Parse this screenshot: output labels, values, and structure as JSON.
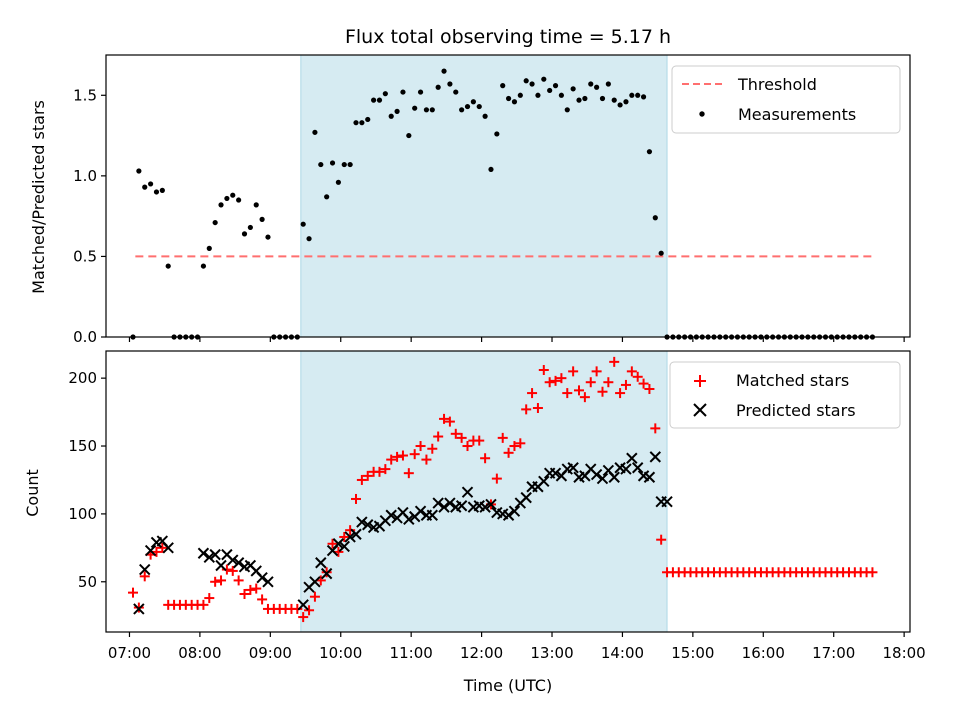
{
  "colors": {
    "shade": "#add8e6",
    "threshold": "#ff6f6f",
    "measurement": "#000000",
    "matched": "#ff0000",
    "predicted": "#000000"
  },
  "chart_data": [
    {
      "type": "scatter",
      "title": "Flux total observing time = 5.17 h",
      "ylabel": "Matched/Predicted stars",
      "ylim": [
        0,
        1.75
      ],
      "yticks": [
        "0.0",
        "0.5",
        "1.0",
        "1.5"
      ],
      "xlim": [
        "06:40",
        "18:05"
      ],
      "shaded_span": [
        "09:26",
        "14:38"
      ],
      "legend_position": "upper right",
      "threshold": {
        "name": "Threshold",
        "value": 0.5,
        "x_range": [
          "07:05",
          "17:35"
        ]
      },
      "series": [
        {
          "name": "Measurements",
          "x": [
            "07:03",
            "07:08",
            "07:13",
            "07:18",
            "07:23",
            "07:28",
            "07:33",
            "07:38",
            "07:43",
            "07:48",
            "07:53",
            "07:58",
            "08:03",
            "08:08",
            "08:13",
            "08:18",
            "08:23",
            "08:28",
            "08:33",
            "08:38",
            "08:43",
            "08:48",
            "08:53",
            "08:58",
            "09:03",
            "09:08",
            "09:13",
            "09:18",
            "09:23",
            "09:28",
            "09:33",
            "09:38",
            "09:43",
            "09:48",
            "09:53",
            "09:58",
            "10:03",
            "10:08",
            "10:13",
            "10:18",
            "10:23",
            "10:28",
            "10:33",
            "10:38",
            "10:43",
            "10:48",
            "10:53",
            "10:58",
            "11:03",
            "11:08",
            "11:13",
            "11:18",
            "11:23",
            "11:28",
            "11:33",
            "11:38",
            "11:43",
            "11:48",
            "11:53",
            "11:58",
            "12:03",
            "12:08",
            "12:13",
            "12:18",
            "12:23",
            "12:28",
            "12:33",
            "12:38",
            "12:43",
            "12:48",
            "12:53",
            "12:58",
            "13:03",
            "13:08",
            "13:13",
            "13:18",
            "13:23",
            "13:28",
            "13:33",
            "13:38",
            "13:43",
            "13:48",
            "13:53",
            "13:58",
            "14:03",
            "14:08",
            "14:13",
            "14:18",
            "14:23",
            "14:28",
            "14:33",
            "14:38",
            "14:43",
            "14:48",
            "14:53",
            "14:58",
            "15:03",
            "15:08",
            "15:13",
            "15:18",
            "15:23",
            "15:28",
            "15:33",
            "15:38",
            "15:43",
            "15:48",
            "15:53",
            "15:58",
            "16:03",
            "16:08",
            "16:13",
            "16:18",
            "16:23",
            "16:28",
            "16:33",
            "16:38",
            "16:43",
            "16:48",
            "16:53",
            "16:58",
            "17:03",
            "17:08",
            "17:13",
            "17:18",
            "17:23",
            "17:28",
            "17:33"
          ],
          "y": [
            0.0,
            1.03,
            0.93,
            0.95,
            0.9,
            0.91,
            0.44,
            0.0,
            0.0,
            0.0,
            0.0,
            0.0,
            0.44,
            0.55,
            0.71,
            0.82,
            0.86,
            0.88,
            0.85,
            0.64,
            0.68,
            0.82,
            0.73,
            0.62,
            0.0,
            0.0,
            0.0,
            0.0,
            0.0,
            0.7,
            0.61,
            1.27,
            1.07,
            0.87,
            1.08,
            0.96,
            1.07,
            1.07,
            1.33,
            1.33,
            1.35,
            1.47,
            1.47,
            1.51,
            1.37,
            1.4,
            1.52,
            1.25,
            1.42,
            1.52,
            1.41,
            1.41,
            1.55,
            1.65,
            1.57,
            1.52,
            1.41,
            1.43,
            1.46,
            1.43,
            1.37,
            1.04,
            1.26,
            1.56,
            1.48,
            1.46,
            1.5,
            1.59,
            1.57,
            1.5,
            1.6,
            1.53,
            1.56,
            1.5,
            1.41,
            1.54,
            1.47,
            1.48,
            1.57,
            1.55,
            1.48,
            1.57,
            1.47,
            1.44,
            1.46,
            1.5,
            1.5,
            1.49,
            1.15,
            0.74,
            0.52,
            0.0,
            0.0,
            0.0,
            0.0,
            0.0,
            0.0,
            0.0,
            0.0,
            0.0,
            0.0,
            0.0,
            0.0,
            0.0,
            0.0,
            0.0,
            0.0,
            0.0,
            0.0,
            0.0,
            0.0,
            0.0,
            0.0,
            0.0,
            0.0,
            0.0,
            0.0,
            0.0,
            0.0,
            0.0,
            0.0,
            0.0,
            0.0,
            0.0,
            0.0,
            0.0,
            0.0
          ]
        }
      ]
    },
    {
      "type": "scatter",
      "xlabel": "Time (UTC)",
      "ylabel": "Count",
      "ylim": [
        13,
        220
      ],
      "yticks": [
        "50",
        "100",
        "150",
        "200"
      ],
      "xlim": [
        "06:40",
        "18:05"
      ],
      "xticks": [
        "07:00",
        "08:00",
        "09:00",
        "10:00",
        "11:00",
        "12:00",
        "13:00",
        "14:00",
        "15:00",
        "16:00",
        "17:00",
        "18:00"
      ],
      "shaded_span": [
        "09:26",
        "14:38"
      ],
      "legend_position": "upper right",
      "series": [
        {
          "name": "Matched stars",
          "marker": "plus",
          "x": [
            "07:03",
            "07:08",
            "07:13",
            "07:18",
            "07:23",
            "07:28",
            "07:33",
            "07:38",
            "07:43",
            "07:48",
            "07:53",
            "07:58",
            "08:03",
            "08:08",
            "08:13",
            "08:18",
            "08:23",
            "08:28",
            "08:33",
            "08:38",
            "08:43",
            "08:48",
            "08:53",
            "08:58",
            "09:03",
            "09:08",
            "09:13",
            "09:18",
            "09:23",
            "09:28",
            "09:33",
            "09:38",
            "09:43",
            "09:48",
            "09:53",
            "09:58",
            "10:03",
            "10:08",
            "10:13",
            "10:18",
            "10:23",
            "10:28",
            "10:33",
            "10:38",
            "10:43",
            "10:48",
            "10:53",
            "10:58",
            "11:03",
            "11:08",
            "11:13",
            "11:18",
            "11:23",
            "11:28",
            "11:33",
            "11:38",
            "11:43",
            "11:48",
            "11:53",
            "11:58",
            "12:03",
            "12:08",
            "12:13",
            "12:18",
            "12:23",
            "12:28",
            "12:33",
            "12:38",
            "12:43",
            "12:48",
            "12:53",
            "12:58",
            "13:03",
            "13:08",
            "13:13",
            "13:18",
            "13:23",
            "13:28",
            "13:33",
            "13:38",
            "13:43",
            "13:48",
            "13:53",
            "13:58",
            "14:03",
            "14:08",
            "14:13",
            "14:18",
            "14:23",
            "14:28",
            "14:33",
            "14:38",
            "14:43",
            "14:48",
            "14:53",
            "14:58",
            "15:03",
            "15:08",
            "15:13",
            "15:18",
            "15:23",
            "15:28",
            "15:33",
            "15:38",
            "15:43",
            "15:48",
            "15:53",
            "15:58",
            "16:03",
            "16:08",
            "16:13",
            "16:18",
            "16:23",
            "16:28",
            "16:33",
            "16:38",
            "16:43",
            "16:48",
            "16:53",
            "16:58",
            "17:03",
            "17:08",
            "17:13",
            "17:18",
            "17:23",
            "17:28",
            "17:33"
          ],
          "y": [
            42,
            31,
            54,
            70,
            72,
            75,
            33,
            33,
            33,
            33,
            33,
            33,
            33,
            38,
            50,
            51,
            59,
            58,
            51,
            41,
            44,
            45,
            37,
            30,
            30,
            30,
            30,
            30,
            30,
            24,
            29,
            39,
            51,
            57,
            78,
            72,
            83,
            88,
            111,
            125,
            128,
            131,
            131,
            133,
            140,
            142,
            143,
            130,
            144,
            150,
            140,
            148,
            157,
            170,
            168,
            159,
            156,
            150,
            154,
            154,
            141,
            107,
            126,
            156,
            145,
            150,
            152,
            177,
            189,
            178,
            206,
            197,
            198,
            200,
            189,
            205,
            191,
            186,
            197,
            205,
            190,
            197,
            212,
            189,
            195,
            205,
            201,
            196,
            192,
            163,
            81,
            57,
            57,
            57,
            57,
            57,
            57,
            57,
            57,
            57,
            57,
            57,
            57,
            57,
            57,
            57,
            57,
            57,
            57,
            57,
            57,
            57,
            57,
            57,
            57,
            57,
            57,
            57,
            57,
            57,
            57,
            57,
            57,
            57,
            57,
            57,
            57
          ]
        },
        {
          "name": "Predicted stars",
          "marker": "x",
          "x": [
            "07:08",
            "07:13",
            "07:18",
            "07:23",
            "07:28",
            "07:33",
            "08:03",
            "08:08",
            "08:13",
            "08:18",
            "08:23",
            "08:28",
            "08:33",
            "08:38",
            "08:43",
            "08:48",
            "08:53",
            "08:58",
            "09:28",
            "09:33",
            "09:38",
            "09:43",
            "09:48",
            "09:53",
            "09:58",
            "10:03",
            "10:08",
            "10:13",
            "10:18",
            "10:23",
            "10:28",
            "10:33",
            "10:38",
            "10:43",
            "10:48",
            "10:53",
            "10:58",
            "11:03",
            "11:08",
            "11:13",
            "11:18",
            "11:23",
            "11:28",
            "11:33",
            "11:38",
            "11:43",
            "11:48",
            "11:53",
            "11:58",
            "12:03",
            "12:08",
            "12:13",
            "12:18",
            "12:23",
            "12:28",
            "12:33",
            "12:38",
            "12:43",
            "12:48",
            "12:53",
            "12:58",
            "13:03",
            "13:08",
            "13:13",
            "13:18",
            "13:23",
            "13:28",
            "13:33",
            "13:38",
            "13:43",
            "13:48",
            "13:53",
            "13:58",
            "14:03",
            "14:08",
            "14:13",
            "14:18",
            "14:23",
            "14:28",
            "14:33",
            "14:38"
          ],
          "y": [
            30,
            59,
            73,
            79,
            80,
            75,
            71,
            68,
            70,
            62,
            70,
            66,
            64,
            61,
            62,
            58,
            53,
            50,
            33,
            46,
            50,
            64,
            56,
            73,
            78,
            76,
            83,
            85,
            94,
            92,
            90,
            91,
            95,
            99,
            97,
            101,
            96,
            98,
            102,
            99,
            99,
            108,
            105,
            108,
            105,
            106,
            116,
            105,
            106,
            105,
            107,
            101,
            100,
            99,
            102,
            108,
            112,
            120,
            120,
            124,
            130,
            130,
            128,
            133,
            134,
            127,
            128,
            133,
            129,
            126,
            132,
            127,
            134,
            133,
            141,
            134,
            128,
            127,
            142,
            109,
            109
          ]
        }
      ]
    }
  ]
}
